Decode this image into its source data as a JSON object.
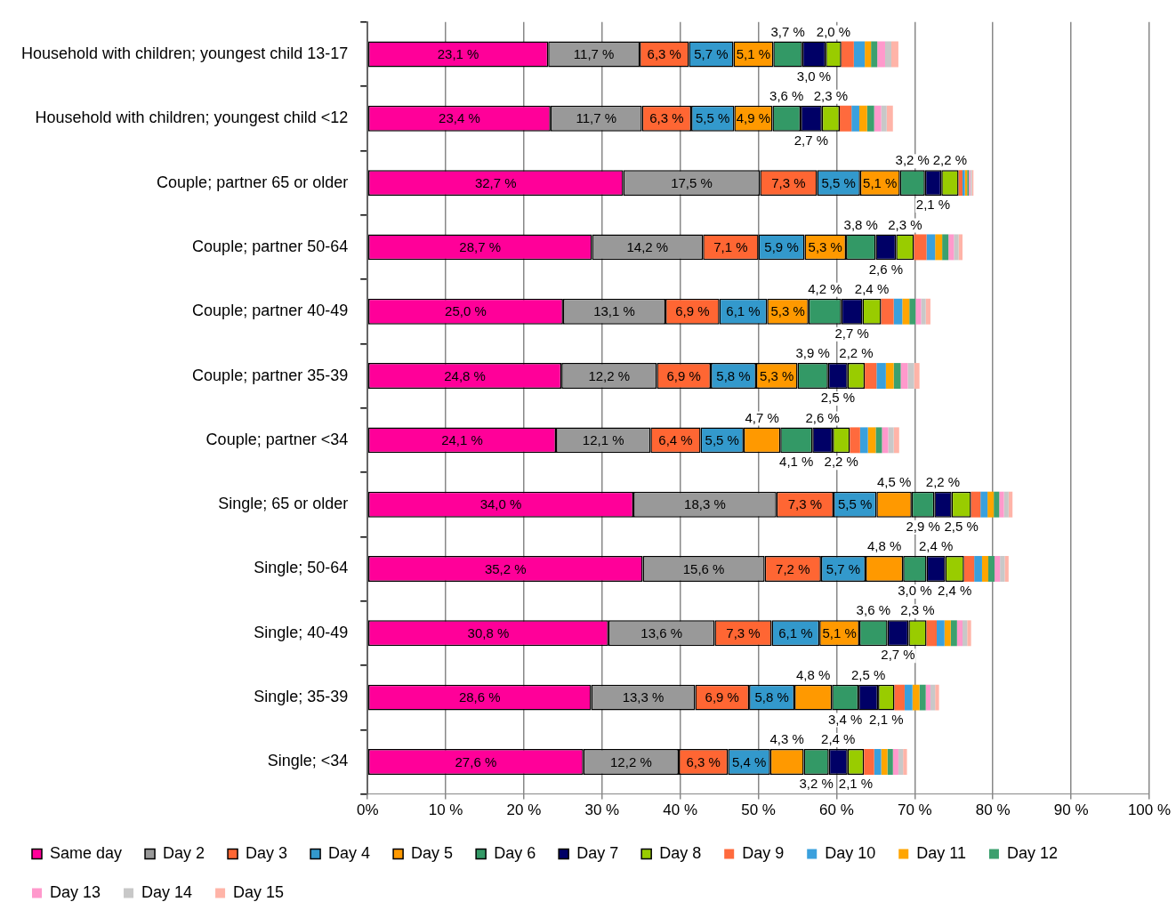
{
  "chart_data": {
    "type": "bar",
    "orientation": "horizontal",
    "stacked": true,
    "grid": "x",
    "legend": "bottom",
    "categories": [
      "Household with children; youngest child 13-17",
      "Household with children; youngest child <12",
      "Couple; partner 65 or older",
      "Couple; partner 50-64",
      "Couple; partner 40-49",
      "Couple; partner 35-39",
      "Couple; partner <34",
      "Single; 65 or older",
      "Single; 50-64",
      "Single; 40-49",
      "Single; 35-39",
      "Single; <34"
    ],
    "xlim": [
      0,
      100
    ],
    "xticks": [
      {
        "value": 0,
        "label": "0%"
      },
      {
        "value": 10,
        "label": "10 %"
      },
      {
        "value": 20,
        "label": "20 %"
      },
      {
        "value": 30,
        "label": "30 %"
      },
      {
        "value": 40,
        "label": "40 %"
      },
      {
        "value": 50,
        "label": "50 %"
      },
      {
        "value": 60,
        "label": "60 %"
      },
      {
        "value": 70,
        "label": "70 %"
      },
      {
        "value": 80,
        "label": "80 %"
      },
      {
        "value": 90,
        "label": "90 %"
      },
      {
        "value": 100,
        "label": "100 %"
      }
    ],
    "series": [
      {
        "name": "Same day",
        "color": "#ff0099",
        "values": [
          23.1,
          23.4,
          32.7,
          28.7,
          25.0,
          24.8,
          24.1,
          34.0,
          35.2,
          30.8,
          28.6,
          27.6
        ],
        "value_labels": [
          "23,1 %",
          "23,4 %",
          "32,7 %",
          "28,7 %",
          "25,0 %",
          "24,8 %",
          "24,1 %",
          "34,0 %",
          "35,2 %",
          "30,8 %",
          "28,6 %",
          "27,6 %"
        ]
      },
      {
        "name": "Day 2",
        "color": "#999999",
        "values": [
          11.7,
          11.7,
          17.5,
          14.2,
          13.1,
          12.2,
          12.1,
          18.3,
          15.6,
          13.6,
          13.3,
          12.2
        ],
        "value_labels": [
          "11,7 %",
          "11,7 %",
          "17,5 %",
          "14,2 %",
          "13,1 %",
          "12,2 %",
          "12,1 %",
          "18,3 %",
          "15,6 %",
          "13,6 %",
          "13,3 %",
          "12,2 %"
        ]
      },
      {
        "name": "Day 3",
        "color": "#ff6633",
        "values": [
          6.3,
          6.3,
          7.3,
          7.1,
          6.9,
          6.9,
          6.4,
          7.3,
          7.2,
          7.3,
          6.9,
          6.3
        ],
        "value_labels": [
          "6,3 %",
          "6,3 %",
          "7,3 %",
          "7,1 %",
          "6,9 %",
          "6,9 %",
          "6,4 %",
          "7,3 %",
          "7,2 %",
          "7,3 %",
          "6,9 %",
          "6,3 %"
        ]
      },
      {
        "name": "Day 4",
        "color": "#3399cc",
        "values": [
          5.7,
          5.5,
          5.5,
          5.9,
          6.1,
          5.8,
          5.5,
          5.5,
          5.7,
          6.1,
          5.8,
          5.4
        ],
        "value_labels": [
          "5,7 %",
          "5,5 %",
          "5,5 %",
          "5,9 %",
          "6,1 %",
          "5,8 %",
          "5,5 %",
          "5,5 %",
          "5,7 %",
          "6,1 %",
          "5,8 %",
          "5,4 %"
        ]
      },
      {
        "name": "Day 5",
        "color": "#ff9900",
        "values": [
          5.1,
          4.9,
          5.1,
          5.3,
          5.3,
          5.3,
          4.7,
          4.5,
          4.8,
          5.1,
          4.8,
          4.3
        ],
        "value_labels": [
          "5,1 %",
          "4,9 %",
          "5,1 %",
          "5,3 %",
          "5,3 %",
          "5,3 %",
          "4,7 %",
          "4,5 %",
          "4,8 %",
          "5,1 %",
          "4,8 %",
          "4,3 %"
        ]
      },
      {
        "name": "Day 6",
        "color": "#339966",
        "values": [
          3.7,
          3.6,
          3.2,
          3.8,
          4.2,
          3.9,
          4.1,
          2.9,
          3.0,
          3.6,
          3.4,
          3.2
        ],
        "value_labels": [
          "3,7 %",
          "3,6 %",
          "3,2 %",
          "3,8 %",
          "4,2 %",
          "3,9 %",
          "4,1 %",
          "2,9 %",
          "3,0 %",
          "3,6 %",
          "3,4 %",
          "3,2 %"
        ]
      },
      {
        "name": "Day 7",
        "color": "#000066",
        "values": [
          3.0,
          2.7,
          2.1,
          2.6,
          2.7,
          2.5,
          2.6,
          2.2,
          2.4,
          2.7,
          2.5,
          2.4
        ],
        "value_labels": [
          "3,0 %",
          "2,7 %",
          "2,1 %",
          "2,6 %",
          "2,7 %",
          "2,5 %",
          "2,6 %",
          "2,2 %",
          "2,4 %",
          "2,7 %",
          "2,5 %",
          "2,4 %"
        ]
      },
      {
        "name": "Day 8",
        "color": "#99cc00",
        "values": [
          2.0,
          2.3,
          2.2,
          2.3,
          2.4,
          2.2,
          2.2,
          2.5,
          2.4,
          2.3,
          2.1,
          2.1
        ],
        "value_labels": [
          "2,0 %",
          "2,3 %",
          "2,2 %",
          "2,3 %",
          "2,4 %",
          "2,2 %",
          "2,2 %",
          "2,5 %",
          "2,4 %",
          "2,3 %",
          "2,1 %",
          "2,1 %"
        ]
      },
      {
        "name": "Day 9",
        "color": "#ff6a3d",
        "values": [
          1.6,
          1.5,
          0.5,
          1.6,
          1.6,
          1.5,
          1.3,
          1.2,
          1.3,
          1.3,
          1.3,
          1.3
        ]
      },
      {
        "name": "Day 10",
        "color": "#3aa0dd",
        "values": [
          1.4,
          1.0,
          0.3,
          1.1,
          1.1,
          1.2,
          1.0,
          0.9,
          1.0,
          1.0,
          1.0,
          0.9
        ]
      },
      {
        "name": "Day 11",
        "color": "#ffa500",
        "values": [
          0.8,
          1.0,
          0.3,
          0.9,
          0.9,
          1.0,
          1.0,
          0.8,
          0.8,
          0.8,
          0.9,
          0.8
        ]
      },
      {
        "name": "Day 12",
        "color": "#3ca06e",
        "values": [
          0.8,
          0.9,
          0.2,
          0.8,
          0.8,
          0.9,
          0.8,
          0.7,
          0.8,
          0.8,
          0.8,
          0.7
        ]
      },
      {
        "name": "Day 13",
        "color": "#ff99cc",
        "values": [
          1.0,
          0.9,
          0.2,
          0.7,
          0.7,
          0.9,
          0.8,
          0.6,
          0.7,
          0.7,
          0.6,
          0.7
        ]
      },
      {
        "name": "Day 14",
        "color": "#c8c8c8",
        "values": [
          0.8,
          0.7,
          0.2,
          0.6,
          0.6,
          0.8,
          0.7,
          0.6,
          0.6,
          0.6,
          0.6,
          0.6
        ]
      },
      {
        "name": "Day 15",
        "color": "#ffb4a8",
        "values": [
          0.9,
          0.8,
          0.2,
          0.5,
          0.6,
          0.7,
          0.7,
          0.5,
          0.5,
          0.5,
          0.5,
          0.5
        ]
      }
    ]
  }
}
